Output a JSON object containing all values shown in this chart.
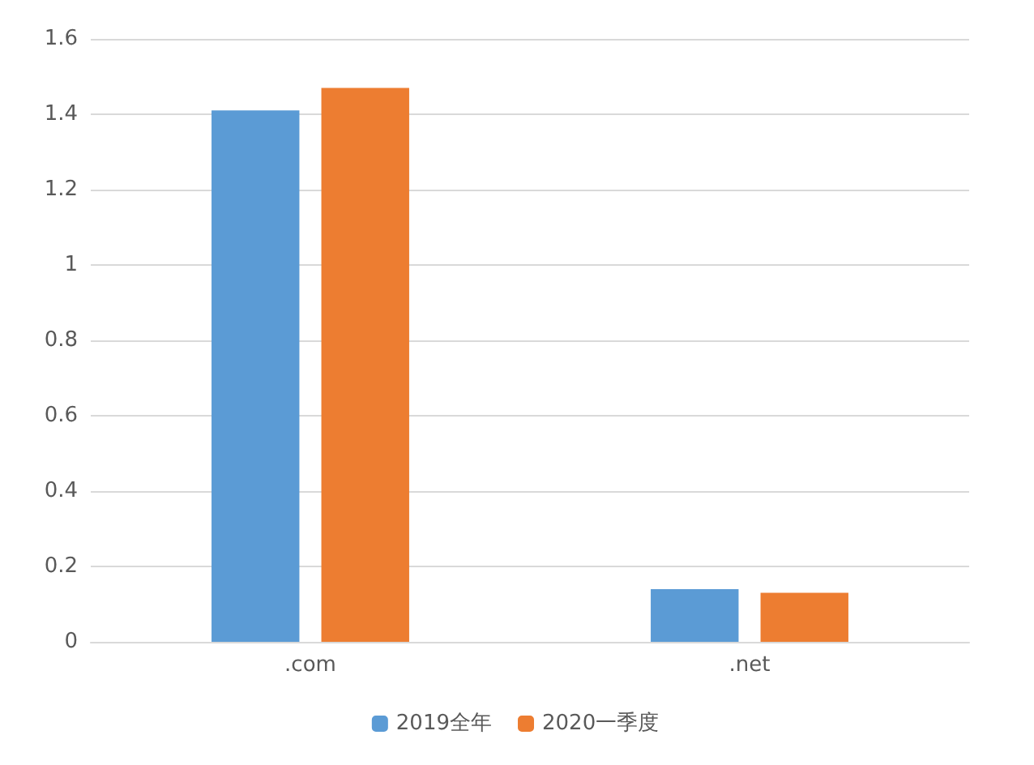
{
  "chart_data": {
    "type": "bar",
    "categories": [
      ".com",
      ".net"
    ],
    "series": [
      {
        "name": "2019全年",
        "color": "#5b9bd5",
        "values": [
          1.41,
          0.14
        ]
      },
      {
        "name": "2020一季度",
        "color": "#ed7d31",
        "values": [
          1.47,
          0.13
        ]
      }
    ],
    "ylim": [
      0,
      1.6
    ],
    "yticks": [
      0,
      0.2,
      0.4,
      0.6,
      0.8,
      1,
      1.2,
      1.4,
      1.6
    ],
    "grid": "y",
    "legend": "bottom"
  }
}
